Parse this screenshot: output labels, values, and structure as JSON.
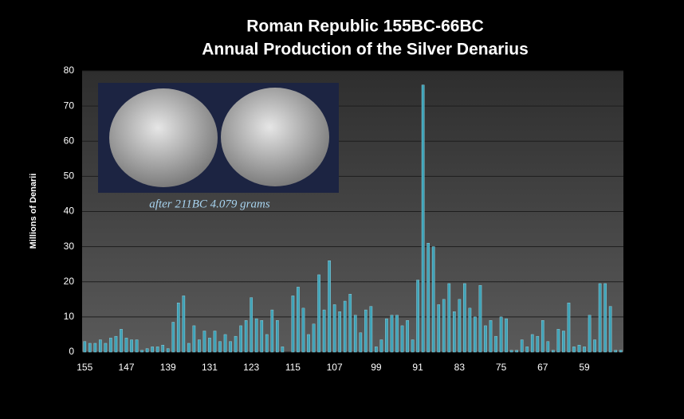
{
  "chart_data": {
    "type": "bar",
    "title": "Roman Republic 155BC-66BC",
    "subtitle": "Annual Production of the Silver Denarius",
    "y_label": "Millions of Denarii",
    "annotation": "after 211BC 4.079 grams",
    "categories": [
      "155",
      null,
      null,
      null,
      null,
      null,
      null,
      null,
      "147",
      null,
      null,
      null,
      null,
      null,
      null,
      null,
      "139",
      null,
      null,
      null,
      null,
      null,
      null,
      null,
      "131",
      null,
      null,
      null,
      null,
      null,
      null,
      null,
      "123",
      null,
      null,
      null,
      null,
      null,
      null,
      null,
      "115",
      null,
      null,
      null,
      null,
      null,
      null,
      null,
      "107",
      null,
      null,
      null,
      null,
      null,
      null,
      null,
      "99",
      null,
      null,
      null,
      null,
      null,
      null,
      null,
      "91",
      null,
      null,
      null,
      null,
      null,
      null,
      null,
      "83",
      null,
      null,
      null,
      null,
      null,
      null,
      null,
      "75",
      null,
      null,
      null,
      null,
      null,
      null,
      null,
      "67",
      null,
      null,
      null,
      null,
      null,
      null,
      null,
      "59",
      null,
      null,
      null,
      null,
      null,
      null,
      null
    ],
    "values": [
      3,
      2.5,
      2.5,
      3.5,
      2.5,
      4,
      4.5,
      6.5,
      4,
      3.5,
      3.5,
      0.5,
      1,
      1.5,
      1.5,
      2,
      1,
      8.5,
      14,
      16,
      2.5,
      7.5,
      3.5,
      6,
      4,
      6,
      3,
      5,
      3,
      4.5,
      7.5,
      9,
      15.5,
      9.5,
      9,
      5,
      12,
      9,
      1.5,
      0,
      16,
      18.5,
      12.5,
      5,
      8,
      22,
      12,
      26,
      13.5,
      11.5,
      14.5,
      16.5,
      10.5,
      5.5,
      12,
      13,
      1.5,
      3.5,
      9.5,
      10.5,
      10.5,
      7.5,
      9,
      3.5,
      20.5,
      76,
      31,
      30,
      13.5,
      15,
      19.5,
      11.5,
      15,
      19.5,
      12.5,
      10,
      19,
      7.5,
      9,
      4.5,
      10,
      9.5,
      0.5,
      0.5,
      3.5,
      1.5,
      5,
      4.5,
      9,
      3,
      0.5,
      6.5,
      6,
      14,
      1.5,
      2,
      1.5,
      10.5,
      3.5,
      19.5,
      19.5,
      13,
      0.5,
      0.5
    ],
    "color": "#3fa3b8",
    "ylim": [
      0,
      80
    ],
    "yticks": [
      0,
      10,
      20,
      30,
      40,
      50,
      60,
      70,
      80
    ],
    "grid": true
  }
}
